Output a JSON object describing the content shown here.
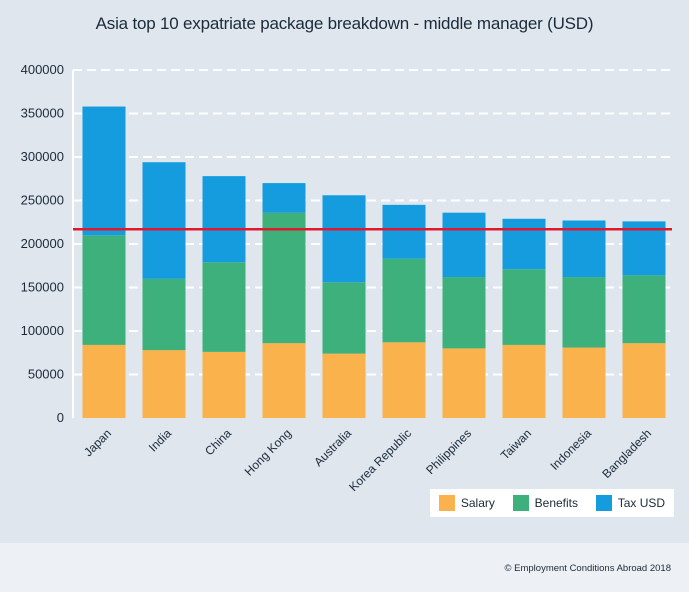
{
  "chart_data": {
    "type": "bar",
    "stacked": true,
    "title": "Asia top 10 expatriate package breakdown - middle manager (USD)",
    "categories": [
      "Japan",
      "India",
      "China",
      "Hong Kong",
      "Australia",
      "Korea Republic",
      "Philippines",
      "Taiwan",
      "Indonesia",
      "Bangladesh"
    ],
    "series": [
      {
        "name": "Salary",
        "color": "#f9b24c",
        "values": [
          84000,
          78000,
          76000,
          86000,
          74000,
          87000,
          80000,
          84000,
          81000,
          86000
        ]
      },
      {
        "name": "Benefits",
        "color": "#3db07b",
        "values": [
          126000,
          82000,
          103000,
          150000,
          82000,
          96000,
          82000,
          87000,
          81000,
          78000
        ]
      },
      {
        "name": "Tax USD",
        "color": "#159cde",
        "values": [
          148000,
          134000,
          99000,
          34000,
          100000,
          62000,
          74000,
          58000,
          65000,
          62000
        ]
      }
    ],
    "reference_line": {
      "value": 217000,
      "color": "#e0182d"
    },
    "yticks": [
      0,
      50000,
      100000,
      150000,
      200000,
      250000,
      300000,
      350000,
      400000
    ],
    "ylim": [
      0,
      400000
    ],
    "grid": true,
    "legend_position": "bottom-right"
  },
  "footer": {
    "copyright": "© Employment Conditions Abroad 2018"
  }
}
